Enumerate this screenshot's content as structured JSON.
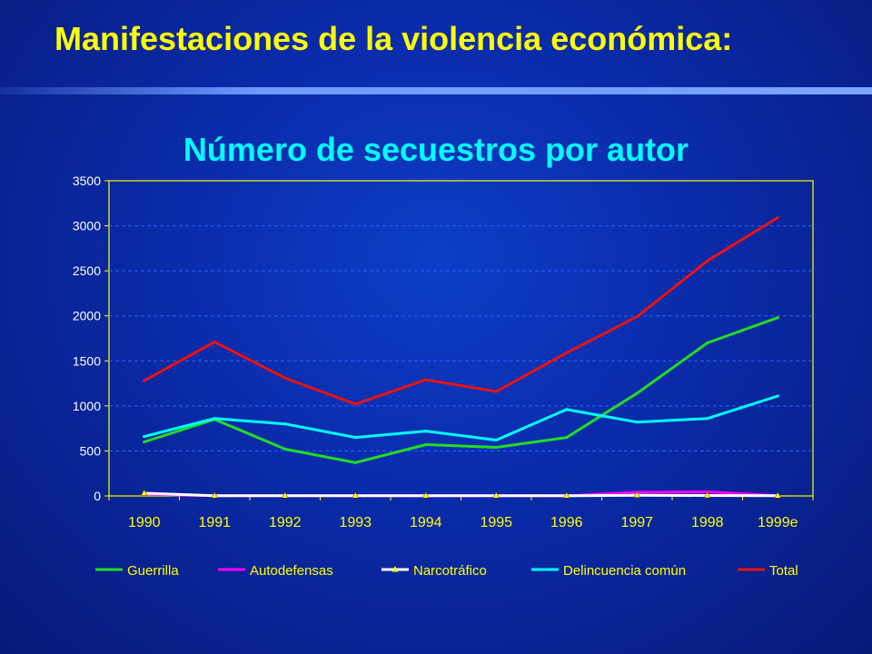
{
  "slide": {
    "title": "Manifestaciones de la violencia económica:"
  },
  "chart_data": {
    "type": "line",
    "title": "Número de secuestros por autor",
    "xlabel": "",
    "ylabel": "",
    "categories": [
      "1990",
      "1991",
      "1992",
      "1993",
      "1994",
      "1995",
      "1996",
      "1997",
      "1998",
      "1999e"
    ],
    "ylim": [
      0,
      3500
    ],
    "yticks": [
      0,
      500,
      1000,
      1500,
      2000,
      2500,
      3000,
      3500
    ],
    "grid": true,
    "legend_position": "bottom",
    "series": [
      {
        "name": "Guerrilla",
        "color": "#22dd22",
        "marker": "none",
        "values": [
          600,
          850,
          520,
          370,
          570,
          540,
          650,
          1140,
          1700,
          1980
        ]
      },
      {
        "name": "Autodefensas",
        "color": "#ff00ff",
        "marker": "none",
        "values": [
          20,
          2,
          2,
          2,
          2,
          2,
          2,
          40,
          45,
          2
        ]
      },
      {
        "name": "Narcotráfico",
        "color": "#ffffff",
        "marker": "triangle",
        "marker_color": "#ffff00",
        "values": [
          30,
          2,
          2,
          2,
          2,
          2,
          2,
          8,
          5,
          2
        ]
      },
      {
        "name": "Delincuencia común",
        "color": "#00ffff",
        "marker": "none",
        "values": [
          660,
          860,
          800,
          650,
          720,
          620,
          960,
          820,
          860,
          1110
        ]
      },
      {
        "name": "Total",
        "color": "#ee1111",
        "marker": "none",
        "values": [
          1280,
          1710,
          1310,
          1020,
          1290,
          1160,
          1590,
          1990,
          2610,
          3090
        ]
      }
    ]
  }
}
